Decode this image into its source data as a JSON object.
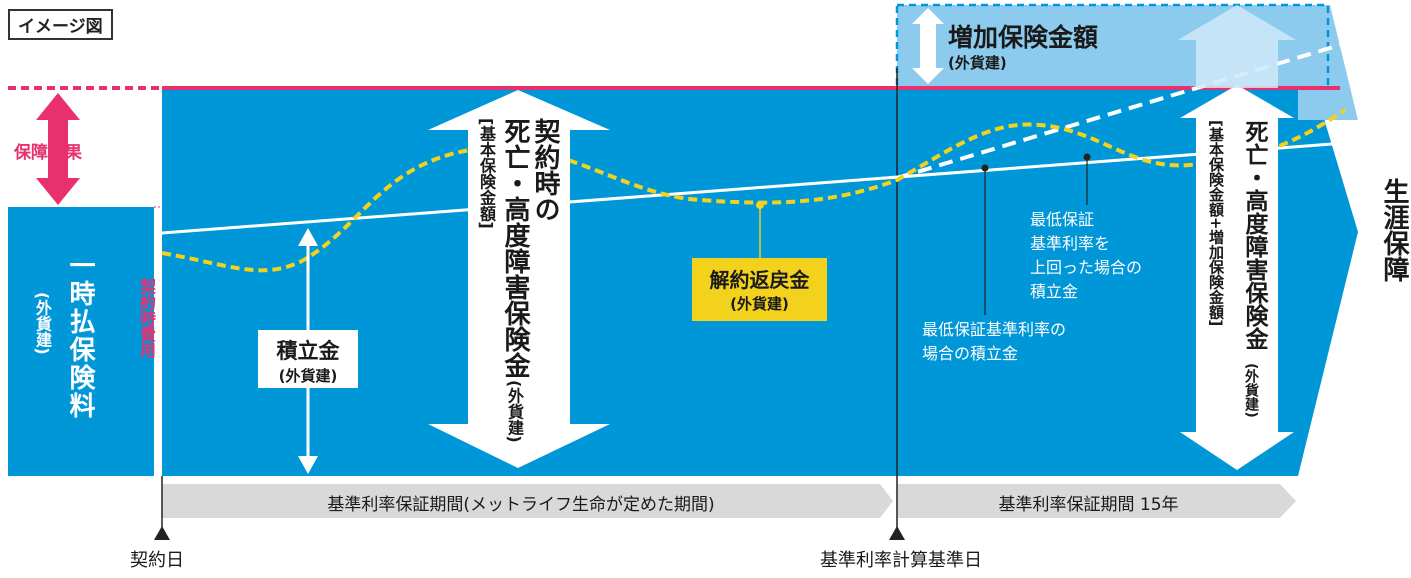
{
  "labels": {
    "image_tag": "イメージ図",
    "increase_title": "増加保険金額",
    "increase_sub": "(外貨建)",
    "protection_effect": "保障効果",
    "single_premium": "一時払保険料",
    "single_premium_sub": "(外貨建)",
    "contract_cost": "契約時費用",
    "accumulation": "積立金",
    "accumulation_sub": "(外貨建)",
    "death_benefit_line1": "契約時の",
    "death_benefit_line2": "死亡・高度障害保険金",
    "death_benefit_sub": "(外貨建)",
    "death_benefit_bracket": "[基本保険金額]",
    "surrender_value": "解約返戻金",
    "surrender_value_sub": "(外貨建)",
    "min_guarantee_above_1": "最低保証",
    "min_guarantee_above_2": "基準利率を",
    "min_guarantee_above_3": "上回った場合の",
    "min_guarantee_above_4": "積立金",
    "min_guarantee_case_1": "最低保証基準利率の",
    "min_guarantee_case_2": "場合の積立金",
    "right_death_benefit": "死亡・高度障害保険金",
    "right_death_benefit_sub": "(外貨建)",
    "right_bracket": "[基本保険金額+増加保険金額]",
    "lifetime_protection": "生涯保障",
    "period_1": "基準利率保証期間(メットライフ生命が定めた期間)",
    "period_2": "基準利率保証期間 15年",
    "contract_date": "契約日",
    "calc_base_date": "基準利率計算基準日"
  },
  "colors": {
    "main_blue": "#0097d8",
    "light_blue": "#8ccbee",
    "pink": "#e8306f",
    "yellow": "#f2d21c",
    "gray_band": "#d9d9d9",
    "white": "#ffffff"
  }
}
